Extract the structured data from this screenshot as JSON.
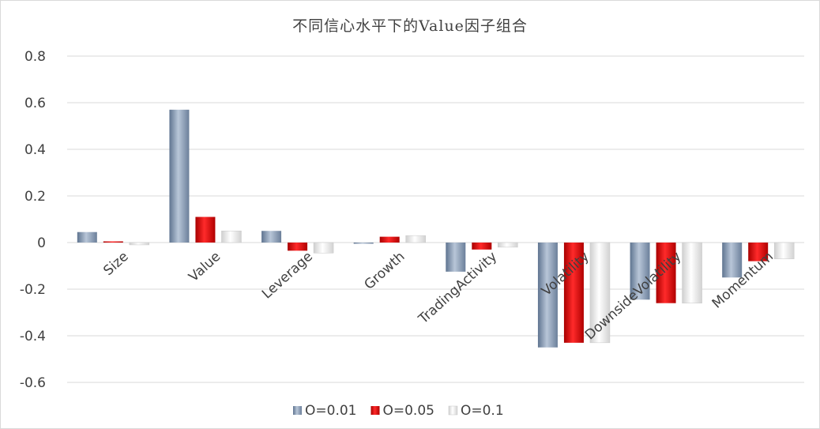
{
  "chart_data": {
    "type": "bar",
    "title": "不同信心水平下的Value因子组合",
    "categories": [
      "Size",
      "Value",
      "Leverage",
      "Growth",
      "TradingActivity",
      "Volatility",
      "DownsideVolatility",
      "Momentum"
    ],
    "series": [
      {
        "name": "O=0.01",
        "color": "#8497b0",
        "values": [
          0.045,
          0.57,
          0.05,
          -0.003,
          -0.125,
          -0.45,
          -0.245,
          -0.15
        ]
      },
      {
        "name": "O=0.05",
        "color": "#e00000",
        "values": [
          0.005,
          0.11,
          -0.035,
          0.025,
          -0.03,
          -0.43,
          -0.26,
          -0.08
        ]
      },
      {
        "name": "O=0.1",
        "color": "#e8e8e8",
        "values": [
          -0.01,
          0.05,
          -0.045,
          0.03,
          -0.02,
          -0.43,
          -0.26,
          -0.07
        ]
      }
    ],
    "yticks": [
      "0.8",
      "0.6",
      "0.4",
      "0.2",
      "0",
      "-0.2",
      "-0.4",
      "-0.6"
    ],
    "ylim": [
      -0.6,
      0.8
    ],
    "grid": true,
    "legend_position": "bottom"
  }
}
